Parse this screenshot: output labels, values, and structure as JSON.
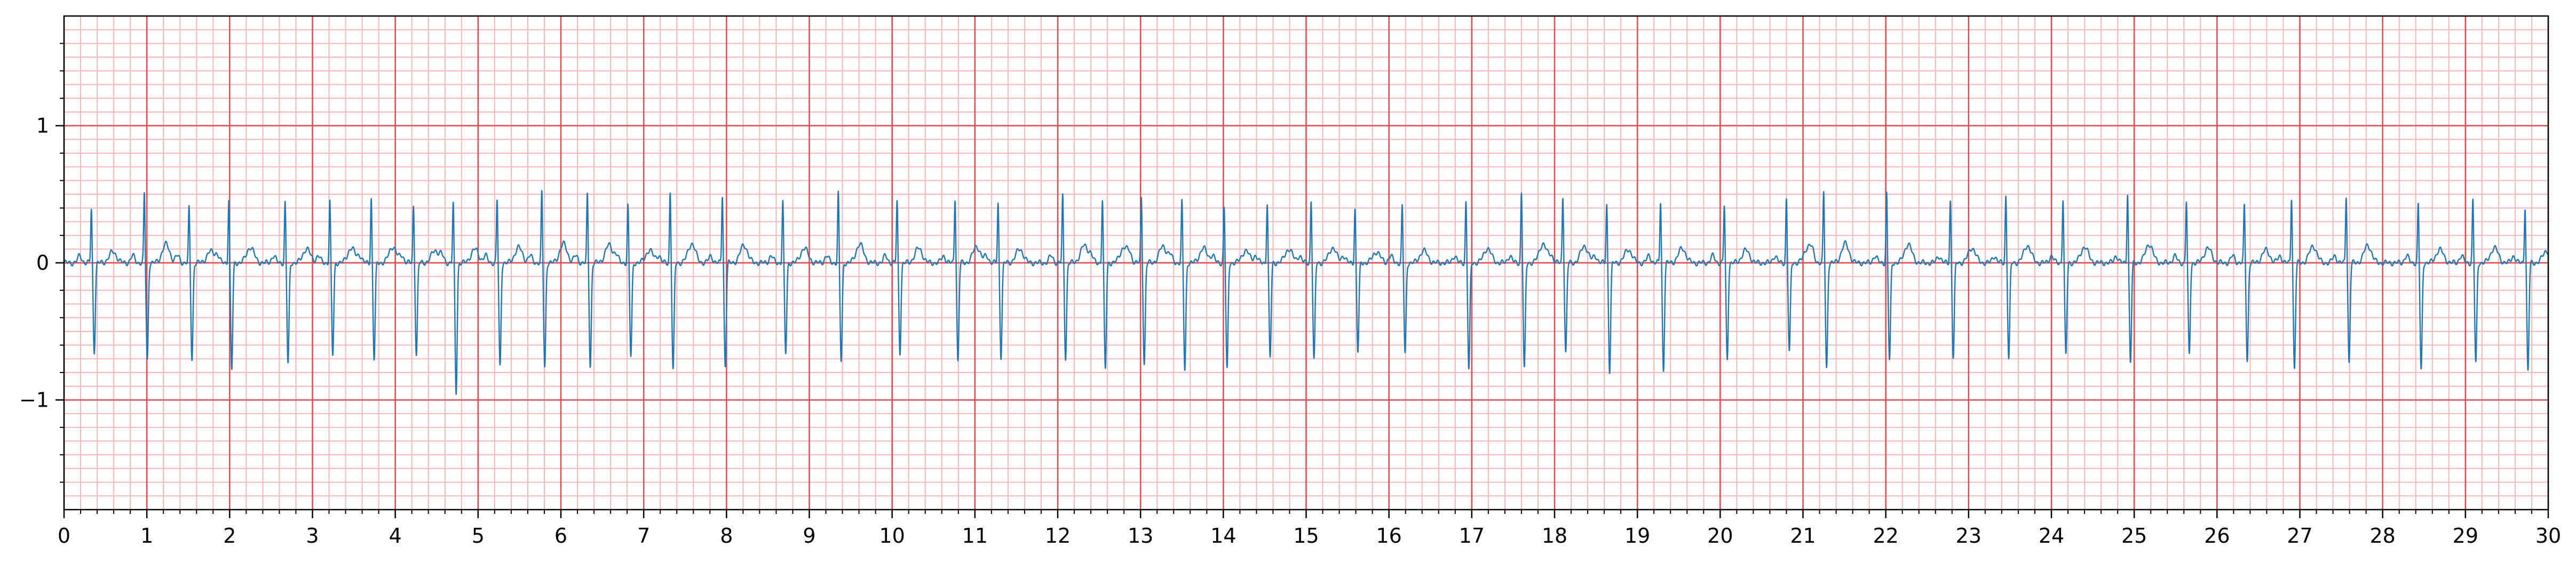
{
  "chart_data": {
    "type": "line",
    "title": "",
    "xlabel": "",
    "ylabel": "",
    "xlim": [
      0,
      30
    ],
    "ylim": [
      -1.8,
      1.8
    ],
    "x_ticks": [
      0,
      1,
      2,
      3,
      4,
      5,
      6,
      7,
      8,
      9,
      10,
      11,
      12,
      13,
      14,
      15,
      16,
      17,
      18,
      19,
      20,
      21,
      22,
      23,
      24,
      25,
      26,
      27,
      28,
      29,
      30
    ],
    "x_tick_labels": [
      "0",
      "1",
      "2",
      "3",
      "4",
      "5",
      "6",
      "7",
      "8",
      "9",
      "10",
      "11",
      "12",
      "13",
      "14",
      "15",
      "16",
      "17",
      "18",
      "19",
      "20",
      "21",
      "22",
      "23",
      "24",
      "25",
      "26",
      "27",
      "28",
      "29",
      "30"
    ],
    "y_ticks": [
      -1,
      0,
      1
    ],
    "y_tick_labels": [
      "−1",
      "0",
      "1"
    ],
    "grid": true,
    "grid_major_color": "#e8474b",
    "grid_minor_color": "#f7b6b8",
    "line_color": "#1f77b4",
    "beat_times_s": [
      0.33,
      0.97,
      1.51,
      1.99,
      2.67,
      3.21,
      3.71,
      4.22,
      4.7,
      5.23,
      5.77,
      6.32,
      6.81,
      7.32,
      7.95,
      8.68,
      9.35,
      10.06,
      10.76,
      11.28,
      12.06,
      12.54,
      13.01,
      13.5,
      14.01,
      14.53,
      15.06,
      15.59,
      16.16,
      16.93,
      17.6,
      18.1,
      18.63,
      19.28,
      20.05,
      20.8,
      21.25,
      22.01,
      22.78,
      23.45,
      24.14,
      24.92,
      25.63,
      26.33,
      26.9,
      27.56,
      28.43,
      29.09,
      29.72
    ],
    "r_peak_amplitude": 0.5,
    "s_wave_amplitude": -0.72,
    "deepest_s_wave": {
      "x": 4.7,
      "y": -0.95
    }
  }
}
